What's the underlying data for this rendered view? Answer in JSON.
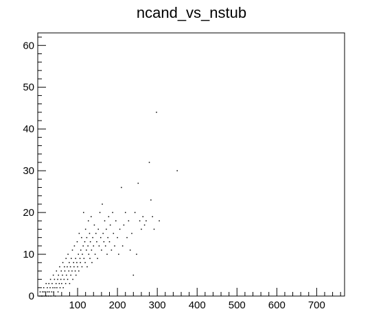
{
  "chart_data": {
    "type": "scatter",
    "title": "ncand_vs_nstub",
    "xlabel": "",
    "ylabel": "",
    "xlim": [
      0,
      770
    ],
    "ylim": [
      0,
      63
    ],
    "x_ticks": [
      100,
      200,
      300,
      400,
      500,
      600,
      700
    ],
    "y_ticks": [
      0,
      10,
      20,
      30,
      40,
      50,
      60
    ],
    "grid": false,
    "legend": "none",
    "marker_color": "#000000",
    "series": [
      {
        "points": [
          [
            4,
            0
          ],
          [
            6,
            1
          ],
          [
            8,
            0
          ],
          [
            10,
            0
          ],
          [
            12,
            1
          ],
          [
            13,
            0
          ],
          [
            15,
            2
          ],
          [
            16,
            1
          ],
          [
            18,
            0
          ],
          [
            20,
            1
          ],
          [
            21,
            3
          ],
          [
            22,
            0
          ],
          [
            24,
            2
          ],
          [
            25,
            1
          ],
          [
            27,
            0
          ],
          [
            28,
            3
          ],
          [
            29,
            1
          ],
          [
            31,
            2
          ],
          [
            32,
            4
          ],
          [
            33,
            0
          ],
          [
            35,
            1
          ],
          [
            36,
            3
          ],
          [
            38,
            2
          ],
          [
            39,
            5
          ],
          [
            40,
            1
          ],
          [
            42,
            4
          ],
          [
            43,
            2
          ],
          [
            44,
            0
          ],
          [
            46,
            3
          ],
          [
            47,
            6
          ],
          [
            48,
            2
          ],
          [
            50,
            4
          ],
          [
            51,
            1
          ],
          [
            52,
            5
          ],
          [
            54,
            3
          ],
          [
            55,
            7
          ],
          [
            56,
            2
          ],
          [
            58,
            4
          ],
          [
            59,
            6
          ],
          [
            60,
            3
          ],
          [
            62,
            5
          ],
          [
            63,
            8
          ],
          [
            64,
            2
          ],
          [
            66,
            4
          ],
          [
            67,
            7
          ],
          [
            68,
            6
          ],
          [
            70,
            3
          ],
          [
            71,
            9
          ],
          [
            72,
            5
          ],
          [
            74,
            7
          ],
          [
            75,
            4
          ],
          [
            76,
            10
          ],
          [
            78,
            6
          ],
          [
            79,
            8
          ],
          [
            80,
            3
          ],
          [
            82,
            7
          ],
          [
            83,
            5
          ],
          [
            84,
            9
          ],
          [
            86,
            6
          ],
          [
            87,
            11
          ],
          [
            88,
            4
          ],
          [
            90,
            8
          ],
          [
            91,
            7
          ],
          [
            92,
            12
          ],
          [
            94,
            6
          ],
          [
            95,
            9
          ],
          [
            96,
            5
          ],
          [
            98,
            8
          ],
          [
            99,
            13
          ],
          [
            100,
            7
          ],
          [
            102,
            10
          ],
          [
            103,
            6
          ],
          [
            104,
            15
          ],
          [
            106,
            9
          ],
          [
            107,
            8
          ],
          [
            108,
            11
          ],
          [
            110,
            14
          ],
          [
            111,
            7
          ],
          [
            112,
            10
          ],
          [
            114,
            12
          ],
          [
            115,
            20
          ],
          [
            116,
            9
          ],
          [
            118,
            13
          ],
          [
            119,
            8
          ],
          [
            120,
            16
          ],
          [
            122,
            11
          ],
          [
            123,
            14
          ],
          [
            124,
            7
          ],
          [
            126,
            12
          ],
          [
            127,
            18
          ],
          [
            128,
            10
          ],
          [
            130,
            15
          ],
          [
            131,
            9
          ],
          [
            132,
            13
          ],
          [
            134,
            19
          ],
          [
            135,
            11
          ],
          [
            136,
            8
          ],
          [
            138,
            14
          ],
          [
            140,
            12
          ],
          [
            142,
            17
          ],
          [
            144,
            10
          ],
          [
            146,
            15
          ],
          [
            148,
            13
          ],
          [
            150,
            9
          ],
          [
            152,
            16
          ],
          [
            154,
            12
          ],
          [
            156,
            20
          ],
          [
            158,
            14
          ],
          [
            160,
            11
          ],
          [
            162,
            22
          ],
          [
            164,
            15
          ],
          [
            166,
            13
          ],
          [
            168,
            18
          ],
          [
            170,
            12
          ],
          [
            172,
            16
          ],
          [
            174,
            10
          ],
          [
            176,
            14
          ],
          [
            178,
            19
          ],
          [
            180,
            13
          ],
          [
            182,
            17
          ],
          [
            185,
            11
          ],
          [
            188,
            20
          ],
          [
            190,
            15
          ],
          [
            193,
            12
          ],
          [
            196,
            18
          ],
          [
            200,
            14
          ],
          [
            203,
            10
          ],
          [
            206,
            16
          ],
          [
            210,
            26
          ],
          [
            213,
            12
          ],
          [
            216,
            17
          ],
          [
            220,
            20
          ],
          [
            224,
            14
          ],
          [
            228,
            18
          ],
          [
            232,
            11
          ],
          [
            236,
            15
          ],
          [
            240,
            5
          ],
          [
            244,
            20
          ],
          [
            248,
            10
          ],
          [
            252,
            27
          ],
          [
            256,
            18
          ],
          [
            260,
            16
          ],
          [
            264,
            19
          ],
          [
            268,
            17
          ],
          [
            272,
            18
          ],
          [
            280,
            32
          ],
          [
            284,
            23
          ],
          [
            288,
            19
          ],
          [
            292,
            16
          ],
          [
            298,
            44
          ],
          [
            305,
            18
          ],
          [
            350,
            30
          ]
        ]
      }
    ]
  }
}
